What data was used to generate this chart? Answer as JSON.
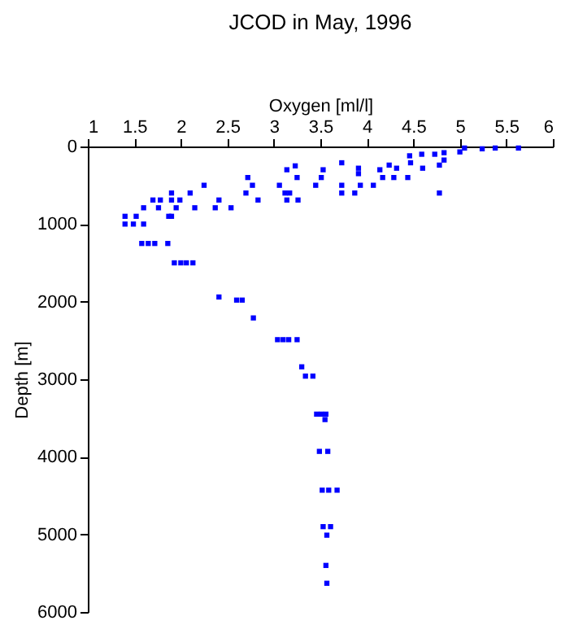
{
  "chart_data": {
    "type": "scatter",
    "title": "JCOD in May, 1996",
    "xlabel": "Oxygen [ml/l]",
    "ylabel": "Depth [m]",
    "x": [
      5.63,
      5.38,
      5.24,
      5.05,
      5.0,
      4.83,
      4.73,
      4.59,
      4.46,
      4.47,
      4.6,
      4.78,
      4.83,
      4.32,
      4.24,
      4.14,
      4.17,
      4.29,
      4.44,
      4.78,
      3.91,
      3.91,
      3.73,
      3.73,
      3.73,
      3.87,
      3.93,
      4.07,
      3.53,
      3.51,
      3.45,
      3.25,
      3.23,
      3.14,
      3.06,
      3.12,
      3.17,
      3.26,
      3.14,
      2.77,
      2.72,
      2.7,
      2.83,
      2.25,
      2.1,
      2.41,
      2.37,
      2.54,
      2.15,
      1.99,
      1.9,
      1.9,
      1.78,
      1.7,
      1.76,
      1.6,
      1.95,
      1.9,
      1.87,
      1.4,
      1.52,
      1.4,
      1.6,
      1.49,
      1.58,
      1.65,
      1.72,
      1.86,
      1.93,
      2.0,
      2.06,
      2.13,
      2.41,
      2.6,
      2.66,
      2.78,
      3.04,
      3.1,
      3.16,
      3.25,
      3.3,
      3.34,
      3.42,
      3.46,
      3.51,
      3.56,
      3.55,
      3.49,
      3.58,
      3.52,
      3.59,
      3.68,
      3.53,
      3.61,
      3.57,
      3.56,
      3.57
    ],
    "series": [
      {
        "color": "#0000ff",
        "values": [
          20,
          20,
          30,
          20,
          70,
          80,
          100,
          100,
          120,
          210,
          280,
          240,
          175,
          280,
          240,
          300,
          400,
          400,
          400,
          600,
          280,
          350,
          210,
          500,
          600,
          600,
          500,
          500,
          300,
          400,
          500,
          400,
          250,
          300,
          500,
          600,
          600,
          690,
          690,
          500,
          400,
          600,
          690,
          500,
          600,
          690,
          790,
          790,
          790,
          690,
          600,
          690,
          690,
          690,
          790,
          790,
          790,
          900,
          900,
          900,
          900,
          1000,
          1000,
          1000,
          1250,
          1250,
          1250,
          1250,
          1500,
          1500,
          1500,
          1500,
          1940,
          1980,
          1980,
          2210,
          2490,
          2490,
          2490,
          2490,
          2840,
          2960,
          2960,
          3450,
          3450,
          3450,
          3520,
          3930,
          3930,
          4430,
          4430,
          4430,
          4900,
          4900,
          5010,
          5400,
          5630
        ]
      }
    ],
    "xlim": [
      1,
      6
    ],
    "xticks": [
      1,
      1.5,
      2,
      2.5,
      3,
      3.5,
      4,
      4.5,
      5,
      5.5,
      6
    ],
    "ylim": [
      6000,
      0
    ],
    "yticks": [
      0,
      1000,
      2000,
      3000,
      4000,
      5000,
      6000
    ],
    "marker": "square",
    "grid": false
  }
}
